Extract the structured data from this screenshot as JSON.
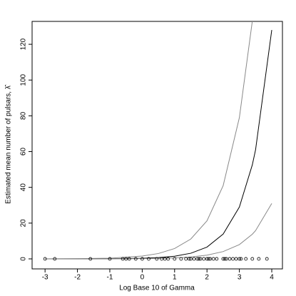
{
  "chart_data": {
    "type": "line",
    "x_label": "Log Base 10 of Gamma",
    "y_label": "Estimated mean number of pulsars, λ̂",
    "x": [
      -3,
      -2,
      -1,
      0,
      0.5,
      1,
      1.5,
      2,
      2.5,
      3,
      3.4,
      3.5,
      4
    ],
    "series": [
      {
        "color": "#888888",
        "values": [
          0.03,
          0.1,
          0.4,
          1.6,
          3.0,
          5.8,
          11.1,
          21.3,
          41,
          79,
          133,
          null,
          null
        ]
      },
      {
        "color": "#000000",
        "values": [
          0,
          0.02,
          0.08,
          0.34,
          0.72,
          1.5,
          3.15,
          6.6,
          13.9,
          29,
          52.6,
          61,
          128
        ]
      },
      {
        "color": "#888888",
        "values": [
          0,
          0.01,
          0.04,
          0.14,
          0.28,
          0.54,
          1.06,
          2.1,
          4.1,
          8,
          13.8,
          15.8,
          31
        ]
      }
    ],
    "points": {
      "color": "#000000",
      "x": [
        -3,
        -2.7,
        -1.6,
        -1.0,
        -0.6,
        -0.5,
        -0.4,
        -0.2,
        0,
        0.2,
        0.45,
        0.6,
        0.7,
        0.8,
        1.0,
        1.2,
        1.35,
        1.45,
        1.5,
        1.6,
        1.7,
        1.75,
        1.8,
        1.9,
        2.0,
        2.05,
        2.1,
        2.2,
        2.3,
        2.5,
        2.55,
        2.6,
        2.7,
        2.8,
        2.9,
        3.0,
        3.05,
        3.2,
        3.4,
        3.6,
        3.85
      ],
      "values": [
        0,
        0,
        0,
        0,
        0,
        0,
        0,
        0,
        0,
        0,
        0,
        0,
        0,
        0,
        0,
        0,
        0,
        0,
        0,
        0,
        0,
        0,
        0,
        0,
        0,
        0,
        0,
        0,
        0,
        0,
        0,
        0,
        0,
        0,
        0,
        0,
        0,
        0,
        0,
        0,
        0
      ]
    },
    "xlim": [
      -3.4,
      4.33
    ],
    "ylim": [
      -5.6,
      132.8
    ],
    "xticks": [
      -3,
      -2,
      -1,
      0,
      1,
      2,
      3,
      4
    ],
    "yticks": [
      0,
      20,
      40,
      60,
      80,
      100,
      120
    ],
    "grid": false
  }
}
